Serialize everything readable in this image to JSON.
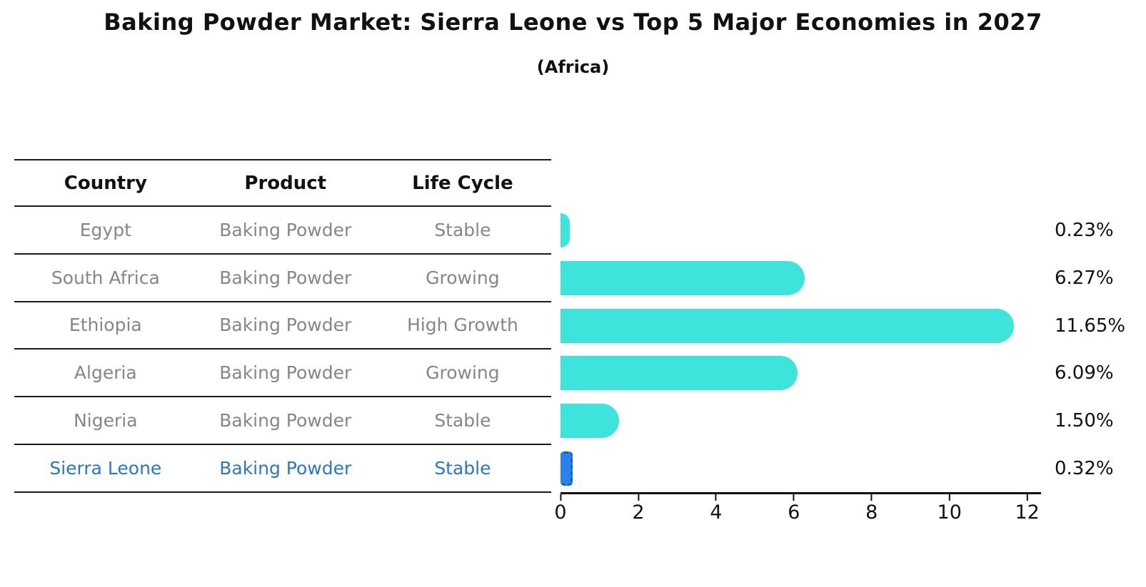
{
  "header": {
    "title": "Baking Powder Market: Sierra Leone vs Top 5 Major Economies in 2027",
    "subtitle": "(Africa)"
  },
  "table": {
    "columns": [
      "Country",
      "Product",
      "Life Cycle"
    ],
    "rows": [
      {
        "country": "Egypt",
        "product": "Baking Powder",
        "life_cycle": "Stable",
        "highlight": false
      },
      {
        "country": "South Africa",
        "product": "Baking Powder",
        "life_cycle": "Growing",
        "highlight": false
      },
      {
        "country": "Ethiopia",
        "product": "Baking Powder",
        "life_cycle": "High Growth",
        "highlight": false
      },
      {
        "country": "Algeria",
        "product": "Baking Powder",
        "life_cycle": "Growing",
        "highlight": false
      },
      {
        "country": "Nigeria",
        "product": "Baking Powder",
        "life_cycle": "Stable",
        "highlight": false
      },
      {
        "country": "Sierra Leone",
        "product": "Baking Powder",
        "life_cycle": "Stable",
        "highlight": true
      }
    ],
    "highlight_text_color": "#2878C8"
  },
  "chart_data": {
    "type": "bar",
    "orientation": "horizontal",
    "title": "Baking Powder Market: Sierra Leone vs Top 5 Major Economies in 2027",
    "subtitle": "(Africa)",
    "categories": [
      "Egypt",
      "South Africa",
      "Ethiopia",
      "Algeria",
      "Nigeria",
      "Sierra Leone"
    ],
    "values": [
      0.23,
      6.27,
      11.65,
      6.09,
      1.5,
      0.32
    ],
    "value_labels": [
      "0.23%",
      "6.27%",
      "11.65%",
      "6.09%",
      "1.50%",
      "0.32%"
    ],
    "xlabel": "",
    "ylabel": "",
    "xlim": [
      0,
      12.3
    ],
    "xticks": [
      0,
      2,
      4,
      6,
      8,
      10,
      12
    ],
    "xtick_labels": [
      "0",
      "2",
      "4",
      "6",
      "8",
      "10",
      "12"
    ],
    "grid": false,
    "legend": false,
    "bar_color": "#3EE3DC",
    "highlight_bar_color": "#2B82EC",
    "highlight_index": 5
  }
}
